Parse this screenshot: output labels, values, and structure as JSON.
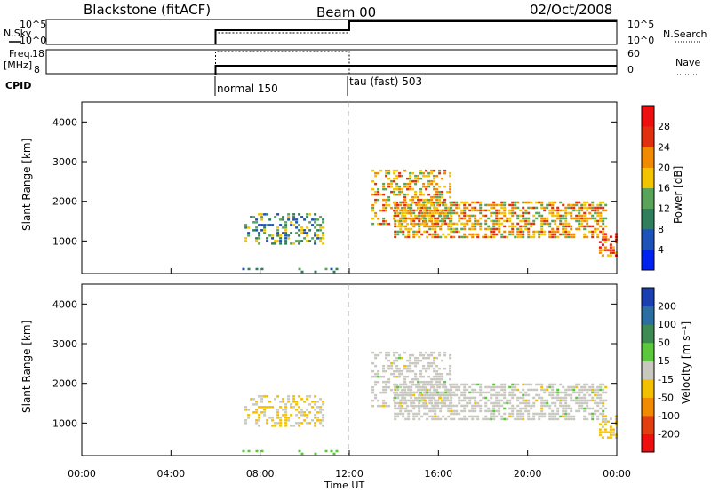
{
  "header": {
    "radar": "Blackstone (fitACF)",
    "beam": "Beam 00",
    "date": "02/Oct/2008"
  },
  "panels": {
    "nsky_label": "N.Sky",
    "nsky_ticks": [
      "10^5",
      "10^0"
    ],
    "nsearch_label": "N.Search",
    "nsearch_ticks": [
      "10^5",
      "10^0"
    ],
    "freq_label": "Freq.",
    "freq_unit": "[MHz]",
    "freq_ticks": [
      "18",
      "8"
    ],
    "nave_label": "Nave",
    "nave_ticks": [
      "60",
      "0"
    ],
    "cpid_label": "CPID",
    "cpid_modes": [
      "normal 150",
      "tau (fast) 503"
    ]
  },
  "power": {
    "ylabel": "Slant Range [km]",
    "yticks": [
      "4000",
      "3000",
      "2000",
      "1000"
    ],
    "colorbar_label": "Power [dB]",
    "colorbar_ticks": [
      "28",
      "24",
      "20",
      "16",
      "12",
      "8",
      "4"
    ],
    "colors": [
      "#0022ee",
      "#1d52b8",
      "#2f7f5c",
      "#5aa35a",
      "#f2c400",
      "#f08a00",
      "#e03010",
      "#ee1010"
    ]
  },
  "velocity": {
    "ylabel": "Slant Range [km]",
    "yticks": [
      "4000",
      "3000",
      "2000",
      "1000"
    ],
    "colorbar_label": "Velocity [m s⁻¹]",
    "colorbar_ticks": [
      "200",
      "100",
      "50",
      "15",
      "-15",
      "-50",
      "-100",
      "-200"
    ],
    "colors": [
      "#1a3fb0",
      "#2a6fa0",
      "#3d8a52",
      "#5ac83a",
      "#c8c8c0",
      "#f2c000",
      "#f08a00",
      "#e04010",
      "#ee1010"
    ]
  },
  "xaxis": {
    "ticks": [
      "00:00",
      "04:00",
      "08:00",
      "12:00",
      "16:00",
      "20:00",
      "00:00"
    ],
    "label": "Time UT"
  },
  "chart_data": [
    {
      "type": "heatmap",
      "title": "Blackstone (fitACF)",
      "xlabel": "Time UT",
      "ylabel": "Slant Range [km]",
      "colorbar": "Power [dB]",
      "xlim": [
        0,
        24
      ],
      "ylim": [
        180,
        4500
      ],
      "clim": [
        0,
        32
      ],
      "regions": [
        {
          "t": [
            6.0,
            12.0
          ],
          "r": [
            200,
            320
          ],
          "value": 8,
          "density": 0.12
        },
        {
          "t": [
            7.3,
            10.8
          ],
          "r": [
            900,
            1700
          ],
          "value": 12,
          "density": 0.35
        },
        {
          "t": [
            13.0,
            16.5
          ],
          "r": [
            1400,
            2800
          ],
          "value": 20,
          "density": 0.45
        },
        {
          "t": [
            14.0,
            23.5
          ],
          "r": [
            1100,
            2000
          ],
          "value": 20,
          "density": 0.6
        },
        {
          "t": [
            23.2,
            24.0
          ],
          "r": [
            600,
            1200
          ],
          "value": 24,
          "density": 0.5
        }
      ]
    },
    {
      "type": "heatmap",
      "xlabel": "Time UT",
      "ylabel": "Slant Range [km]",
      "colorbar": "Velocity [m s⁻¹]",
      "xlim": [
        0,
        24
      ],
      "ylim": [
        180,
        4500
      ],
      "clim": [
        -250,
        250
      ],
      "regions": [
        {
          "t": [
            6.0,
            12.0
          ],
          "r": [
            200,
            320
          ],
          "value": 50,
          "density": 0.12
        },
        {
          "t": [
            7.3,
            10.8
          ],
          "r": [
            900,
            1700
          ],
          "value": -30,
          "density": 0.35
        },
        {
          "t": [
            13.0,
            16.5
          ],
          "r": [
            1400,
            2800
          ],
          "value": 0,
          "density": 0.45
        },
        {
          "t": [
            14.0,
            23.5
          ],
          "r": [
            1100,
            2000
          ],
          "value": 0,
          "density": 0.6
        },
        {
          "t": [
            23.2,
            24.0
          ],
          "r": [
            600,
            1200
          ],
          "value": -50,
          "density": 0.5
        }
      ]
    }
  ]
}
